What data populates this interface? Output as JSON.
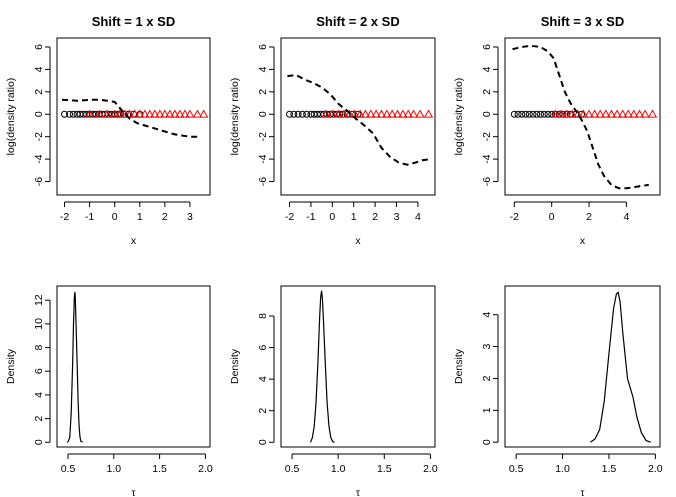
{
  "chart_data": [
    {
      "type": "line+scatter",
      "title": "Shift = 1 x SD",
      "xlabel": "x",
      "ylabel": "log(density ratio)",
      "xlim": [
        -2.3,
        3.8
      ],
      "ylim": [
        -7.2,
        6.8
      ],
      "xticks": [
        "-2",
        "-1",
        "0",
        "1",
        "2",
        "3"
      ],
      "xtick_values": [
        -2,
        -1,
        0,
        1,
        2,
        3
      ],
      "yticks": [
        "-6",
        "-4",
        "-2",
        "0",
        "2",
        "4",
        "6"
      ],
      "ytick_values": [
        -6,
        -4,
        -2,
        0,
        2,
        4,
        6
      ],
      "curve": {
        "name": "log density ratio",
        "style": "dashed",
        "x": [
          -2.1,
          -1.8,
          -1.5,
          -1.2,
          -0.9,
          -0.6,
          -0.3,
          0.0,
          0.3,
          0.6,
          0.9,
          1.2,
          1.5,
          1.8,
          2.1,
          2.4,
          2.7,
          3.0,
          3.3
        ],
        "y": [
          1.3,
          1.25,
          1.2,
          1.25,
          1.3,
          1.3,
          1.2,
          1.1,
          0.3,
          -0.4,
          -0.8,
          -1.0,
          -1.2,
          -1.4,
          -1.6,
          -1.8,
          -1.9,
          -2.0,
          -2.0
        ]
      },
      "series": [
        {
          "name": "group 0",
          "marker": "circle",
          "color": "#000000",
          "y": 0,
          "x": [
            -2.0,
            -1.8,
            -1.65,
            -1.5,
            -1.38,
            -1.25,
            -1.12,
            -1.0,
            -0.88,
            -0.75,
            -0.62,
            -0.5,
            -0.38,
            -0.25,
            -0.12,
            0.0,
            0.12,
            0.25,
            0.38,
            0.55,
            0.75,
            1.0
          ]
        },
        {
          "name": "group 1",
          "marker": "triangle",
          "color": "#ff0000",
          "y": 0,
          "x": [
            -1.0,
            -0.6,
            -0.3,
            0.0,
            0.2,
            0.4,
            0.6,
            0.8,
            1.0,
            1.2,
            1.4,
            1.6,
            1.8,
            2.0,
            2.2,
            2.4,
            2.6,
            2.8,
            3.0,
            3.3,
            3.55
          ]
        }
      ]
    },
    {
      "type": "line+scatter",
      "title": "Shift = 2 x SD",
      "xlabel": "x",
      "ylabel": "log(density ratio)",
      "xlim": [
        -2.4,
        4.8
      ],
      "ylim": [
        -7.2,
        6.8
      ],
      "xticks": [
        "-2",
        "-1",
        "0",
        "1",
        "2",
        "3",
        "4"
      ],
      "xtick_values": [
        -2,
        -1,
        0,
        1,
        2,
        3,
        4
      ],
      "yticks": [
        "-6",
        "-4",
        "-2",
        "0",
        "2",
        "4",
        "6"
      ],
      "ytick_values": [
        -6,
        -4,
        -2,
        0,
        2,
        4,
        6
      ],
      "curve": {
        "name": "log density ratio",
        "style": "dashed",
        "x": [
          -2.1,
          -1.7,
          -1.3,
          -0.9,
          -0.5,
          -0.1,
          0.3,
          0.7,
          1.1,
          1.5,
          1.9,
          2.3,
          2.7,
          3.1,
          3.5,
          3.9,
          4.2,
          4.6
        ],
        "y": [
          3.4,
          3.5,
          3.1,
          2.8,
          2.4,
          1.8,
          0.9,
          0.3,
          -0.4,
          -1.0,
          -1.7,
          -3.0,
          -3.8,
          -4.3,
          -4.5,
          -4.3,
          -4.1,
          -4.0
        ]
      },
      "series": [
        {
          "name": "group 0",
          "marker": "circle",
          "color": "#000000",
          "y": 0,
          "x": [
            -2.0,
            -1.8,
            -1.6,
            -1.4,
            -1.2,
            -1.0,
            -0.85,
            -0.7,
            -0.55,
            -0.4,
            -0.25,
            -0.1,
            0.05,
            0.2,
            0.35,
            0.5,
            0.7,
            0.95,
            1.2
          ]
        },
        {
          "name": "group 1",
          "marker": "triangle",
          "color": "#ff0000",
          "y": 0,
          "x": [
            -0.3,
            0.0,
            0.3,
            0.55,
            0.8,
            1.05,
            1.3,
            1.55,
            1.8,
            2.05,
            2.3,
            2.55,
            2.8,
            3.05,
            3.3,
            3.55,
            3.8,
            4.1,
            4.5
          ]
        }
      ]
    },
    {
      "type": "line+scatter",
      "title": "Shift = 3 x SD",
      "xlabel": "x",
      "ylabel": "log(density ratio)",
      "xlim": [
        -2.5,
        5.8
      ],
      "ylim": [
        -7.2,
        6.8
      ],
      "xticks": [
        "-2",
        "0",
        "2",
        "4"
      ],
      "xtick_values": [
        -2,
        0,
        2,
        4
      ],
      "yticks": [
        "-6",
        "-4",
        "-2",
        "0",
        "2",
        "4",
        "6"
      ],
      "ytick_values": [
        -6,
        -4,
        -2,
        0,
        2,
        4,
        6
      ],
      "curve": {
        "name": "log density ratio",
        "style": "dashed",
        "x": [
          -2.1,
          -1.6,
          -1.1,
          -0.6,
          -0.2,
          0.1,
          0.4,
          0.7,
          1.0,
          1.3,
          1.6,
          1.9,
          2.2,
          2.5,
          2.8,
          3.2,
          3.6,
          4.0,
          4.4,
          4.8,
          5.2
        ],
        "y": [
          5.8,
          6.0,
          6.1,
          6.0,
          5.6,
          5.0,
          3.5,
          2.0,
          1.0,
          0.3,
          -0.5,
          -1.5,
          -3.0,
          -4.5,
          -5.5,
          -6.3,
          -6.6,
          -6.6,
          -6.5,
          -6.4,
          -6.3
        ]
      },
      "series": [
        {
          "name": "group 0",
          "marker": "circle",
          "color": "#000000",
          "y": 0,
          "x": [
            -2.0,
            -1.8,
            -1.6,
            -1.4,
            -1.2,
            -1.0,
            -0.8,
            -0.6,
            -0.4,
            -0.2,
            0.0,
            0.2,
            0.4,
            0.6,
            0.8,
            1.0,
            1.3,
            1.6
          ]
        },
        {
          "name": "group 1",
          "marker": "triangle",
          "color": "#ff0000",
          "y": 0,
          "x": [
            0.2,
            0.5,
            0.8,
            1.1,
            1.4,
            1.7,
            2.0,
            2.3,
            2.6,
            2.9,
            3.2,
            3.5,
            3.8,
            4.1,
            4.4,
            4.7,
            5.0,
            5.4
          ]
        }
      ]
    },
    {
      "type": "line",
      "title": "",
      "xlabel": "τ",
      "ylabel": "Density",
      "xlim": [
        0.38,
        2.05
      ],
      "ylim": [
        -0.4,
        13.2
      ],
      "xticks": [
        "0.5",
        "1.0",
        "1.5",
        "2.0"
      ],
      "xtick_values": [
        0.5,
        1.0,
        1.5,
        2.0
      ],
      "yticks": [
        "0",
        "2",
        "4",
        "6",
        "8",
        "10",
        "12"
      ],
      "ytick_values": [
        0,
        2,
        4,
        6,
        8,
        10,
        12
      ],
      "curve": {
        "name": "posterior density",
        "style": "solid",
        "x": [
          0.49,
          0.5,
          0.52,
          0.535,
          0.55,
          0.56,
          0.57,
          0.575,
          0.58,
          0.59,
          0.6,
          0.61,
          0.62,
          0.63,
          0.64,
          0.66
        ],
        "y": [
          0.0,
          0.05,
          0.4,
          2.5,
          6.5,
          10.0,
          12.3,
          12.7,
          12.2,
          9.5,
          6.5,
          3.5,
          1.5,
          0.5,
          0.1,
          0.0
        ]
      }
    },
    {
      "type": "line",
      "title": "",
      "xlabel": "τ",
      "ylabel": "Density",
      "xlim": [
        0.38,
        2.05
      ],
      "ylim": [
        -0.3,
        9.9
      ],
      "xticks": [
        "0.5",
        "1.0",
        "1.5",
        "2.0"
      ],
      "xtick_values": [
        0.5,
        1.0,
        1.5,
        2.0
      ],
      "yticks": [
        "0",
        "2",
        "4",
        "6",
        "8"
      ],
      "ytick_values": [
        0,
        2,
        4,
        6,
        8
      ],
      "curve": {
        "name": "posterior density",
        "style": "solid",
        "x": [
          0.7,
          0.72,
          0.74,
          0.76,
          0.78,
          0.8,
          0.81,
          0.82,
          0.83,
          0.84,
          0.86,
          0.88,
          0.9,
          0.92,
          0.94,
          0.96
        ],
        "y": [
          0.0,
          0.3,
          1.0,
          2.5,
          5.0,
          8.0,
          9.2,
          9.6,
          9.0,
          7.8,
          5.0,
          2.5,
          1.0,
          0.3,
          0.05,
          0.0
        ]
      }
    },
    {
      "type": "line",
      "title": "",
      "xlabel": "τ",
      "ylabel": "Density",
      "xlim": [
        0.38,
        2.05
      ],
      "ylim": [
        -0.15,
        4.9
      ],
      "xticks": [
        "0.5",
        "1.0",
        "1.5",
        "2.0"
      ],
      "xtick_values": [
        0.5,
        1.0,
        1.5,
        2.0
      ],
      "yticks": [
        "0",
        "1",
        "2",
        "3",
        "4"
      ],
      "ytick_values": [
        0,
        1,
        2,
        3,
        4
      ],
      "curve": {
        "name": "posterior density",
        "style": "solid",
        "x": [
          1.3,
          1.35,
          1.4,
          1.45,
          1.5,
          1.55,
          1.58,
          1.6,
          1.62,
          1.65,
          1.7,
          1.73,
          1.76,
          1.8,
          1.85,
          1.9,
          1.95
        ],
        "y": [
          0.0,
          0.1,
          0.4,
          1.3,
          2.8,
          4.2,
          4.65,
          4.7,
          4.4,
          3.4,
          2.0,
          1.7,
          1.4,
          0.8,
          0.3,
          0.05,
          0.0
        ]
      }
    }
  ]
}
